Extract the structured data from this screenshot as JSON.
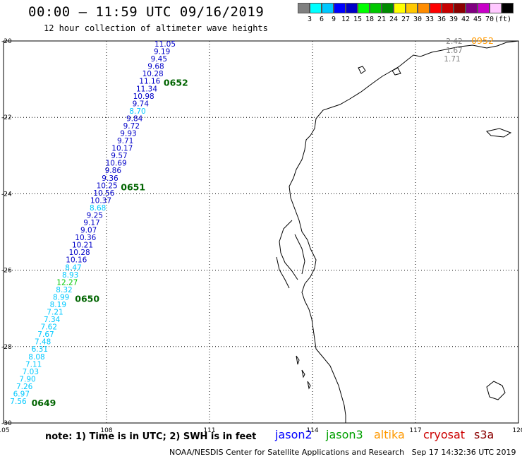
{
  "header": {
    "title": "00:00 – 11:59 UTC 09/16/2019",
    "subtitle": "12 hour collection of altimeter wave heights"
  },
  "colorbar": {
    "colors": [
      "#808080",
      "#00ffff",
      "#00c8ff",
      "#0000ff",
      "#0000c8",
      "#00ff00",
      "#00c800",
      "#008c00",
      "#ffff00",
      "#ffc800",
      "#ff8c00",
      "#ff0000",
      "#c80000",
      "#8c0000",
      "#800080",
      "#c800c8",
      "#ffc8ff",
      "#000000"
    ],
    "labels": [
      "3",
      "6",
      "9",
      "12",
      "15",
      "18",
      "21",
      "24",
      "27",
      "30",
      "33",
      "36",
      "39",
      "42",
      "45",
      "70",
      "(ft)"
    ]
  },
  "map": {
    "lon_range": [
      105,
      120
    ],
    "lat_range": [
      -30,
      -20
    ],
    "lon_ticks": [
      "105",
      "108",
      "111",
      "114",
      "117",
      "120"
    ],
    "lat_ticks": [
      "-20",
      "-22",
      "-24",
      "-26",
      "-28",
      "-30"
    ]
  },
  "track": {
    "labels": [
      "11.05",
      "9.19",
      "9.45",
      "9.68",
      "10.28",
      "11.16",
      "11.34",
      "10.98",
      "9.74",
      "8.70",
      "9.84",
      "9.72",
      "9.93",
      "9.71",
      "10.17",
      "9.57",
      "10.69",
      "9.86",
      "9.36",
      "10.25",
      "10.56",
      "10.37",
      "8.68",
      "9.25",
      "9.17",
      "9.07",
      "10.36",
      "10.21",
      "10.28",
      "10.16",
      "8.47",
      "8.93",
      "12.27",
      "8.32",
      "8.99",
      "8.19",
      "7.21",
      "7.34",
      "7.62",
      "7.67",
      "7.48",
      "6.31",
      "8.08",
      "7.11",
      "7.03",
      "7.90",
      "7.26",
      "6.97",
      "7.56"
    ],
    "colors": [
      "#0000c8",
      "#0000c8",
      "#0000c8",
      "#0000c8",
      "#0000c8",
      "#0000c8",
      "#0000c8",
      "#0000c8",
      "#0000c8",
      "#00c8ff",
      "#0000c8",
      "#0000c8",
      "#0000c8",
      "#0000c8",
      "#0000c8",
      "#0000c8",
      "#0000c8",
      "#0000c8",
      "#0000c8",
      "#0000c8",
      "#0000c8",
      "#0000c8",
      "#00c8ff",
      "#0000c8",
      "#0000c8",
      "#0000c8",
      "#0000c8",
      "#0000c8",
      "#0000c8",
      "#0000c8",
      "#00c8ff",
      "#00c8ff",
      "#00c800",
      "#00c8ff",
      "#00c8ff",
      "#00c8ff",
      "#00c8ff",
      "#00c8ff",
      "#00c8ff",
      "#00c8ff",
      "#00c8ff",
      "#00c8ff",
      "#00c8ff",
      "#00c8ff",
      "#00c8ff",
      "#00c8ff",
      "#00c8ff",
      "#00c8ff",
      "#00c8ff"
    ],
    "pass_labels": [
      "0652",
      "0651",
      "0650",
      "0649"
    ]
  },
  "corner": {
    "labels": [
      "2.42",
      "1.67",
      "1.71"
    ],
    "pass": "0952"
  },
  "footer": {
    "note": "note: 1) Time is in UTC; 2) SWH is in feet",
    "satellites": [
      {
        "name": "jason2",
        "color": "#0000ff"
      },
      {
        "name": "jason3",
        "color": "#00a000"
      },
      {
        "name": "altika",
        "color": "#ff9900"
      },
      {
        "name": "cryosat",
        "color": "#cc0000"
      },
      {
        "name": "s3a",
        "color": "#8b0000"
      }
    ],
    "credit": "NOAA/NESDIS Center for Satellite Applications and Research   Sep 17 14:32:36 UTC 2019"
  }
}
